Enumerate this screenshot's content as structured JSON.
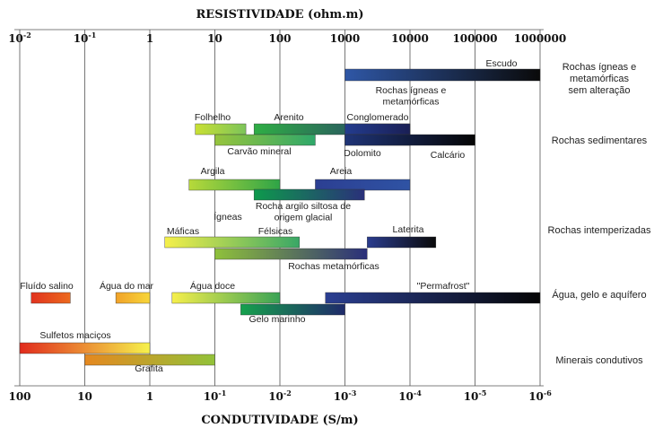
{
  "chart_data": {
    "type": "bar",
    "orientation": "horizontal-range",
    "top_axis": {
      "title": "RESISTIVIDADE (ohm.m)",
      "scale": "log",
      "range": [
        0.01,
        1000000
      ],
      "ticks": [
        {
          "value": 0.01,
          "mant": "10",
          "exp": "-2"
        },
        {
          "value": 0.1,
          "mant": "10",
          "exp": "-1"
        },
        {
          "value": 1,
          "mant": "1",
          "exp": ""
        },
        {
          "value": 10,
          "mant": "10",
          "exp": ""
        },
        {
          "value": 100,
          "mant": "100",
          "exp": ""
        },
        {
          "value": 1000,
          "mant": "1000",
          "exp": ""
        },
        {
          "value": 10000,
          "mant": "10000",
          "exp": ""
        },
        {
          "value": 100000,
          "mant": "100000",
          "exp": ""
        },
        {
          "value": 1000000,
          "mant": "1000000",
          "exp": ""
        }
      ]
    },
    "bottom_axis": {
      "title": "CONDUTIVIDADE (S/m)",
      "scale": "log",
      "ticks": [
        {
          "mant": "100",
          "exp": ""
        },
        {
          "mant": "10",
          "exp": ""
        },
        {
          "mant": "1",
          "exp": ""
        },
        {
          "mant": "10",
          "exp": "-1"
        },
        {
          "mant": "10",
          "exp": "-2"
        },
        {
          "mant": "10",
          "exp": "-3"
        },
        {
          "mant": "10",
          "exp": "-4"
        },
        {
          "mant": "10",
          "exp": "-5"
        },
        {
          "mant": "10",
          "exp": "-6"
        }
      ]
    },
    "grid": true,
    "groups": [
      {
        "name": "Rochas ígneas e metamórficas sem alteração",
        "lines": [
          "Rochas ígneas e",
          "metamórficas",
          "sem alteração"
        ],
        "row": 0
      },
      {
        "name": "Rochas sedimentares",
        "lines": [
          "Rochas sedimentares"
        ],
        "row": 1
      },
      {
        "name": "Rochas intemperizadas",
        "lines": [
          "Rochas intemperizadas"
        ],
        "row": 2
      },
      {
        "name": "Água, gelo e aquífero",
        "lines": [
          "Água, gelo e aquífero"
        ],
        "row": 3
      },
      {
        "name": "Minerais condutivos",
        "lines": [
          "Minerais condutivos"
        ],
        "row": 4
      }
    ],
    "series": [
      {
        "name": "Escudo",
        "row": 0,
        "level": 0,
        "range": [
          1000,
          1000000
        ],
        "colors": [
          "#2f57a6",
          "#0a0a0a"
        ],
        "label_lines": [
          "Escudo"
        ],
        "label_pos": "above-right"
      },
      {
        "name": "Rochas ígneas e metamórficas",
        "row": 0,
        "level": 0,
        "range": [
          1000,
          1000000
        ],
        "colors": [
          "#2f57a6",
          "#0a0a0a"
        ],
        "label_lines": [
          "Rochas ígneas e",
          "metamórficas"
        ],
        "label_pos": "below-center-left"
      },
      {
        "name": "Folhelho",
        "row": 1,
        "level": 0,
        "range": [
          5,
          30
        ],
        "colors": [
          "#c9e034",
          "#7cc45a"
        ],
        "label_lines": [
          "Folhelho"
        ],
        "label_pos": "above-left"
      },
      {
        "name": "Arenito",
        "row": 1,
        "level": 0,
        "range": [
          40,
          10000
        ],
        "colors": [
          "#2fae45",
          "#27306d"
        ],
        "label_lines": [
          "Arenito"
        ],
        "label_pos": "above-left"
      },
      {
        "name": "Conglomerado",
        "row": 1,
        "level": 0,
        "range": [
          1000,
          10000
        ],
        "colors": [
          "#233c8e",
          "#1a1f55"
        ],
        "label_lines": [
          "Conglomerado"
        ],
        "label_pos": "above-left"
      },
      {
        "name": "Carvão mineral",
        "row": 1,
        "level": 1,
        "range": [
          10,
          350
        ],
        "colors": [
          "#97c43d",
          "#2fa86a"
        ],
        "label_lines": [
          "Carvão mineral"
        ],
        "label_pos": "below-center"
      },
      {
        "name": "Dolomito",
        "row": 1,
        "level": 1,
        "range": [
          1000,
          10000
        ],
        "colors": [
          "#1f3477",
          "#1c2358"
        ],
        "label_lines": [
          "Dolomito"
        ],
        "label_pos": "below-left"
      },
      {
        "name": "Calcário",
        "row": 1,
        "level": 1,
        "range": [
          1000,
          100000
        ],
        "colors": [
          "#1f3477",
          "#050505"
        ],
        "label_lines": [
          "Calcário"
        ],
        "label_pos": "below-right"
      },
      {
        "name": "Argila",
        "row": 2,
        "level": 0,
        "range": [
          4,
          100
        ],
        "colors": [
          "#b7d93a",
          "#2ea447"
        ],
        "label_lines": [
          "Argila"
        ],
        "label_pos": "above-left"
      },
      {
        "name": "Areia",
        "row": 2,
        "level": 0,
        "range": [
          350,
          10000
        ],
        "colors": [
          "#2c3f92",
          "#2f53a4"
        ],
        "label_lines": [
          "Areia"
        ],
        "label_pos": "above-center"
      },
      {
        "name": "Rocha argilo siltosa de origem glacial",
        "row": 2,
        "level": 1,
        "range": [
          40,
          2000
        ],
        "colors": [
          "#0e9a4c",
          "#2a307a"
        ],
        "label_lines": [
          "Rocha argilo siltosa de",
          "origem glacial"
        ],
        "label_pos": "below-center"
      },
      {
        "name": "Ígneas",
        "row": 2,
        "level": 2,
        "range": [
          null,
          null
        ],
        "label_lines": [
          "Ígneas"
        ],
        "label_pos": "title-only",
        "label_at": 15
      },
      {
        "name": "Máficas",
        "row": 2,
        "level": 2,
        "range": [
          1.7,
          200
        ],
        "colors": [
          "#f5f04a",
          "#39a766"
        ],
        "label_lines": [
          "Máficas"
        ],
        "label_pos": "above-left"
      },
      {
        "name": "Félsicas",
        "row": 2,
        "level": 2,
        "range": [
          1.7,
          200
        ],
        "colors": [
          "#f5f04a",
          "#39a766"
        ],
        "label_lines": [
          "Félsicas"
        ],
        "label_pos": "above-right-inside",
        "label_at": 90
      },
      {
        "name": "Laterita",
        "row": 2,
        "level": 2,
        "range": [
          2200,
          25000
        ],
        "colors": [
          "#2a3c8e",
          "#0a0a0a"
        ],
        "label_lines": [
          "Laterita"
        ],
        "label_pos": "above-center"
      },
      {
        "name": "Rochas metamórficas",
        "row": 2,
        "level": 3,
        "range": [
          10,
          2200
        ],
        "colors": [
          "#8fc13b",
          "#2a2f7a"
        ],
        "label_lines": [
          "Rochas metamórficas"
        ],
        "label_pos": "below-right"
      },
      {
        "name": "Fluído salino",
        "row": 3,
        "level": 0,
        "range": [
          0.015,
          0.06
        ],
        "colors": [
          "#e1331f",
          "#ec6a1e"
        ],
        "label_lines": [
          "Fluído salino"
        ],
        "label_pos": "above-left"
      },
      {
        "name": "Água do mar",
        "row": 3,
        "level": 0,
        "range": [
          0.3,
          1
        ],
        "colors": [
          "#f1a229",
          "#f7d63a"
        ],
        "label_lines": [
          "Água do mar"
        ],
        "label_pos": "above-left"
      },
      {
        "name": "Água doce",
        "row": 3,
        "level": 0,
        "range": [
          2.2,
          100
        ],
        "colors": [
          "#f6ef4c",
          "#3aa356"
        ],
        "label_lines": [
          "Água doce"
        ],
        "label_pos": "above-left"
      },
      {
        "name": "\"Permafrost\"",
        "row": 3,
        "level": 0,
        "range": [
          500,
          1000000
        ],
        "colors": [
          "#2b3f92",
          "#050505"
        ],
        "label_lines": [
          "\"Permafrost\""
        ],
        "label_pos": "above-center"
      },
      {
        "name": "Gelo marinho",
        "row": 3,
        "level": 1,
        "range": [
          25,
          1000
        ],
        "colors": [
          "#16a14d",
          "#1f2a6a"
        ],
        "label_lines": [
          "Gelo marinho"
        ],
        "label_pos": "below-center"
      },
      {
        "name": "Sulfetos maciços",
        "row": 4,
        "level": 0,
        "range": [
          0.01,
          1
        ],
        "colors": [
          "#e12b1d",
          "#f6f24c"
        ],
        "label_lines": [
          "Sulfetos maciços"
        ],
        "label_pos": "above-left"
      },
      {
        "name": "Grafita",
        "row": 4,
        "level": 1,
        "range": [
          0.1,
          10
        ],
        "colors": [
          "#e5881f",
          "#92c23a"
        ],
        "label_lines": [
          "Grafita"
        ],
        "label_pos": "below-center"
      }
    ]
  }
}
